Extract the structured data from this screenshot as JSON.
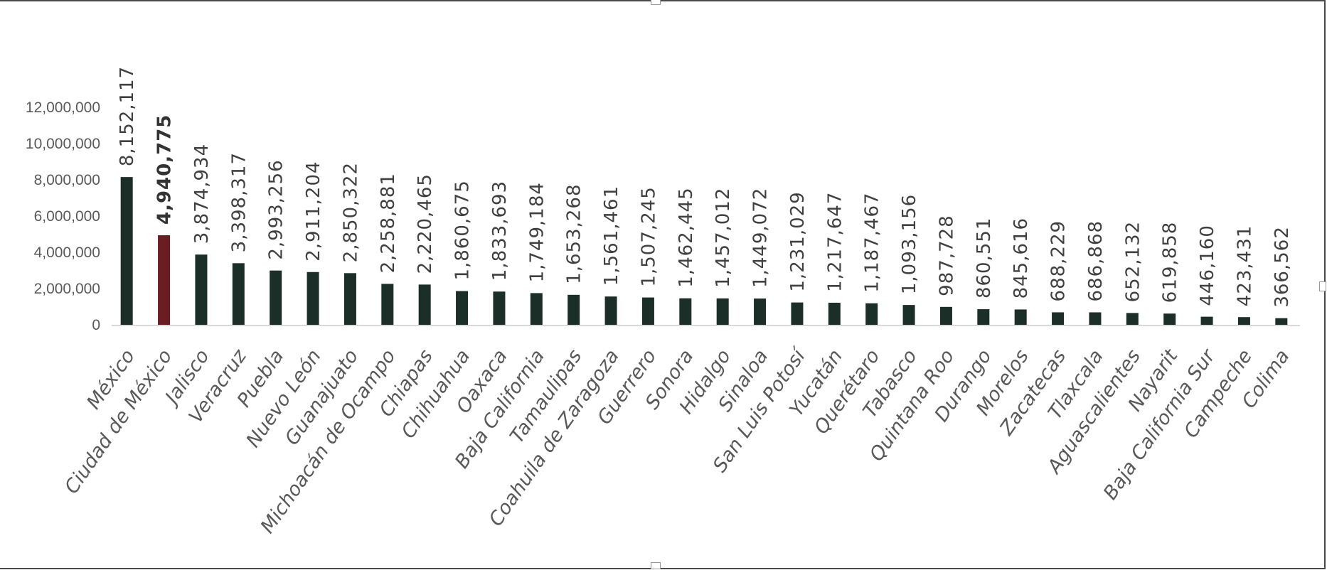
{
  "colors": {
    "bar": "#1b2e28",
    "highlight_bar": "#6b1d24",
    "axis": "#d9d9d9",
    "text": "#595959"
  },
  "chart_data": {
    "type": "bar",
    "categories": [
      "México",
      "Ciudad de México",
      "Jalisco",
      "Veracruz",
      "Puebla",
      "Nuevo León",
      "Guanajuato",
      "Michoacán de Ocampo",
      "Chiapas",
      "Chihuahua",
      "Oaxaca",
      "Baja California",
      "Tamaulipas",
      "Coahuila de Zaragoza",
      "Guerrero",
      "Sonora",
      "Hidalgo",
      "Sinaloa",
      "San Luis Potosí",
      "Yucatán",
      "Querétaro",
      "Tabasco",
      "Quintana Roo",
      "Durango",
      "Morelos",
      "Zacatecas",
      "Tlaxcala",
      "Aguascalientes",
      "Nayarit",
      "Baja California Sur",
      "Campeche",
      "Colima"
    ],
    "values": [
      8152117,
      4940775,
      3874934,
      3398317,
      2993256,
      2911204,
      2850322,
      2258881,
      2220465,
      1860675,
      1833693,
      1749184,
      1653268,
      1561461,
      1507245,
      1462445,
      1457012,
      1449072,
      1231029,
      1217647,
      1187467,
      1093156,
      987728,
      860551,
      845616,
      688229,
      686868,
      652132,
      619858,
      446160,
      423431,
      366562
    ],
    "data_labels": [
      "8,152,117",
      "4,940,775",
      "3,874,934",
      "3,398,317",
      "2,993,256",
      "2,911,204",
      "2,850,322",
      "2,258,881",
      "2,220,465",
      "1,860,675",
      "1,833,693",
      "1,749,184",
      "1,653,268",
      "1,561,461",
      "1,507,245",
      "1,462,445",
      "1,457,012",
      "1,449,072",
      "1,231,029",
      "1,217,647",
      "1,187,467",
      "1,093,156",
      "987,728",
      "860,551",
      "845,616",
      "688,229",
      "686,868",
      "652,132",
      "619,858",
      "446,160",
      "423,431",
      "366,562"
    ],
    "highlight_category": "Ciudad de México",
    "y_ticks": [
      0,
      2000000,
      4000000,
      6000000,
      8000000,
      10000000,
      12000000
    ],
    "y_tick_labels": [
      "0",
      "2,000,000",
      "4,000,000",
      "6,000,000",
      "8,000,000",
      "10,000,000",
      "12,000,000"
    ],
    "ylim": [
      0,
      12000000
    ],
    "title": "",
    "xlabel": "",
    "ylabel": "",
    "grid": false,
    "legend": "none"
  }
}
